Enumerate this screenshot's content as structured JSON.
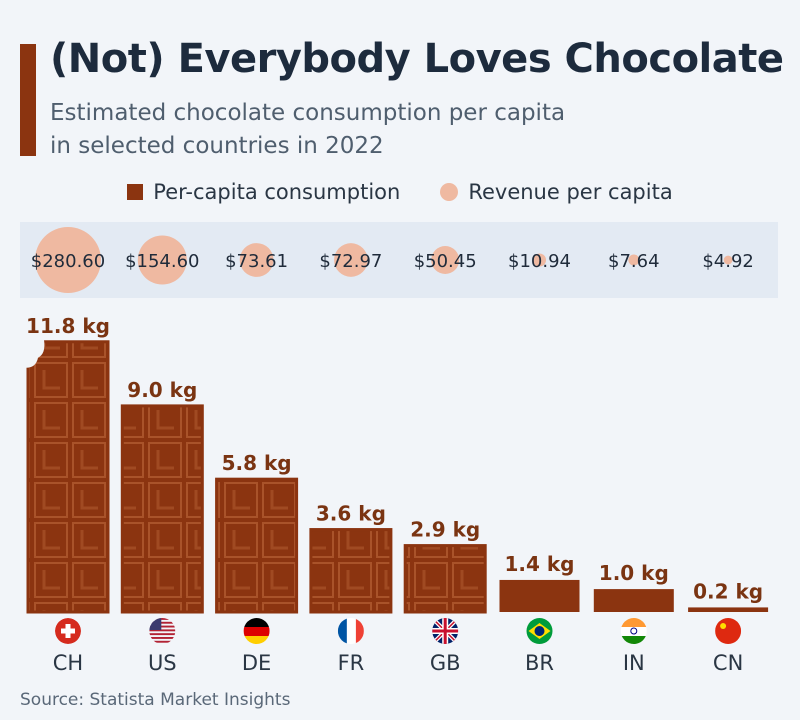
{
  "title": "(Not) Everybody Loves Chocolate",
  "subtitle_line1": "Estimated chocolate consumption per capita",
  "subtitle_line2": "in selected countries in 2022",
  "legend": {
    "consumption": "Per-capita consumption",
    "revenue": "Revenue per capita"
  },
  "source": "Source: Statista Market Insights",
  "colors": {
    "bar": "#8b3410",
    "bar_light": "#a9532a",
    "revenue": "#efb9a1",
    "label": "#7a3412"
  },
  "chart_data": {
    "type": "bar",
    "title": "(Not) Everybody Loves Chocolate",
    "categories": [
      "CH",
      "US",
      "DE",
      "FR",
      "GB",
      "BR",
      "IN",
      "CN"
    ],
    "series": [
      {
        "name": "Per-capita consumption",
        "unit": "kg",
        "values": [
          11.8,
          9.0,
          5.8,
          3.6,
          2.9,
          1.4,
          1.0,
          0.2
        ],
        "labels": [
          "11.8 kg",
          "9.0 kg",
          "5.8 kg",
          "3.6 kg",
          "2.9 kg",
          "1.4 kg",
          "1.0 kg",
          "0.2 kg"
        ]
      },
      {
        "name": "Revenue per capita",
        "unit": "USD",
        "values": [
          280.6,
          154.6,
          73.61,
          72.97,
          50.45,
          10.94,
          7.64,
          4.92
        ],
        "labels": [
          "$280.60",
          "$154.60",
          "$73.61",
          "$72.97",
          "$50.45",
          "$10.94",
          "$7.64",
          "$4.92"
        ]
      }
    ],
    "flags": [
      "flag-switzerland",
      "flag-usa",
      "flag-germany",
      "flag-france",
      "flag-uk",
      "flag-brazil",
      "flag-india",
      "flag-china"
    ]
  }
}
